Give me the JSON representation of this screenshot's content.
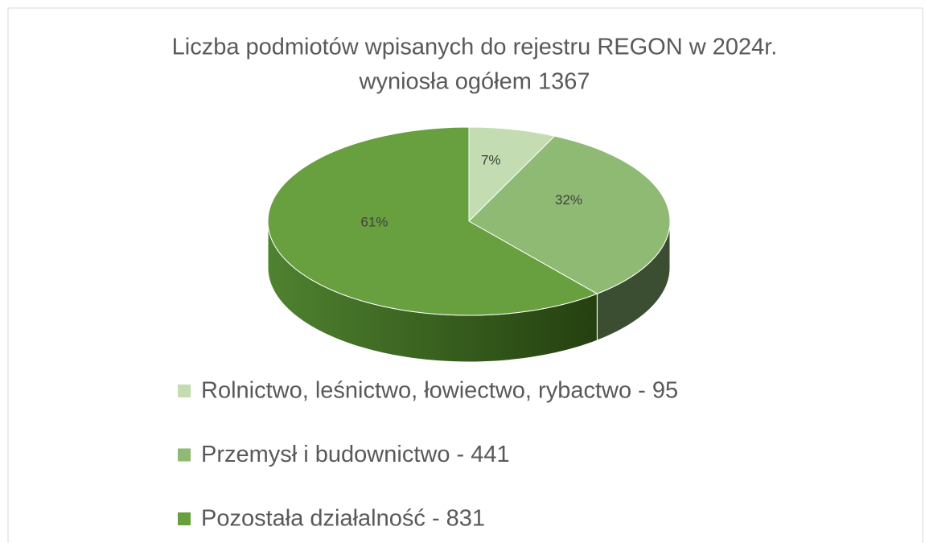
{
  "chart_data": {
    "type": "pie3d",
    "title": [
      "Liczba podmiotów wpisanych do rejestru REGON w 2024r.",
      "wyniosła ogółem 1367"
    ],
    "categories": [
      "Rolnictwo, leśnictwo, łowiectwo, rybactwo - 95",
      "Przemysł i budownictwo - 441",
      "Pozostała działalność - 831"
    ],
    "values": [
      7,
      32,
      61
    ],
    "value_labels": [
      "7%",
      "32%",
      "61%"
    ],
    "colors": [
      "#c3dcb1",
      "#8fba74",
      "#68a03f"
    ],
    "legend": "bottom"
  }
}
